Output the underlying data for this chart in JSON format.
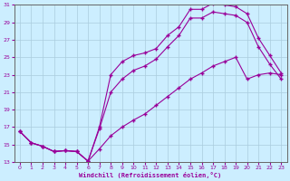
{
  "xlabel": "Windchill (Refroidissement éolien,°C)",
  "bg_color": "#cceeff",
  "grid_color": "#aaccdd",
  "line_color": "#990099",
  "xlim": [
    -0.5,
    23.5
  ],
  "ylim": [
    13,
    31
  ],
  "xticks": [
    0,
    1,
    2,
    3,
    4,
    5,
    6,
    7,
    8,
    9,
    10,
    11,
    12,
    13,
    14,
    15,
    16,
    17,
    18,
    19,
    20,
    21,
    22,
    23
  ],
  "yticks": [
    13,
    15,
    17,
    19,
    21,
    23,
    25,
    27,
    29,
    31
  ],
  "line1_x": [
    0,
    1,
    2,
    3,
    4,
    5,
    6,
    7,
    8,
    9,
    10,
    11,
    12,
    13,
    14,
    15,
    16,
    17,
    18,
    19,
    20,
    21,
    22,
    23
  ],
  "line1_y": [
    16.5,
    15.2,
    14.8,
    14.2,
    14.3,
    14.2,
    13.1,
    17.0,
    23.0,
    24.5,
    25.2,
    25.5,
    26.0,
    27.5,
    28.5,
    30.5,
    30.5,
    31.2,
    31.0,
    30.8,
    30.0,
    27.2,
    25.2,
    23.2
  ],
  "line2_x": [
    0,
    1,
    2,
    3,
    4,
    5,
    6,
    7,
    8,
    9,
    10,
    11,
    12,
    13,
    14,
    15,
    16,
    17,
    18,
    19,
    20,
    21,
    22,
    23
  ],
  "line2_y": [
    16.5,
    15.2,
    14.8,
    14.2,
    14.3,
    14.2,
    13.1,
    16.8,
    21.0,
    22.5,
    23.5,
    24.0,
    24.8,
    26.2,
    27.5,
    29.5,
    29.5,
    30.2,
    30.0,
    29.8,
    29.0,
    26.2,
    24.2,
    22.5
  ],
  "line3_x": [
    0,
    1,
    2,
    3,
    4,
    5,
    6,
    7,
    8,
    9,
    10,
    11,
    12,
    13,
    14,
    15,
    16,
    17,
    18,
    19,
    20,
    21,
    22,
    23
  ],
  "line3_y": [
    16.5,
    15.2,
    14.8,
    14.2,
    14.3,
    14.2,
    13.1,
    14.5,
    16.0,
    17.0,
    17.8,
    18.5,
    19.5,
    20.5,
    21.5,
    22.5,
    23.2,
    24.0,
    24.5,
    25.0,
    22.5,
    23.0,
    23.2,
    23.0
  ]
}
